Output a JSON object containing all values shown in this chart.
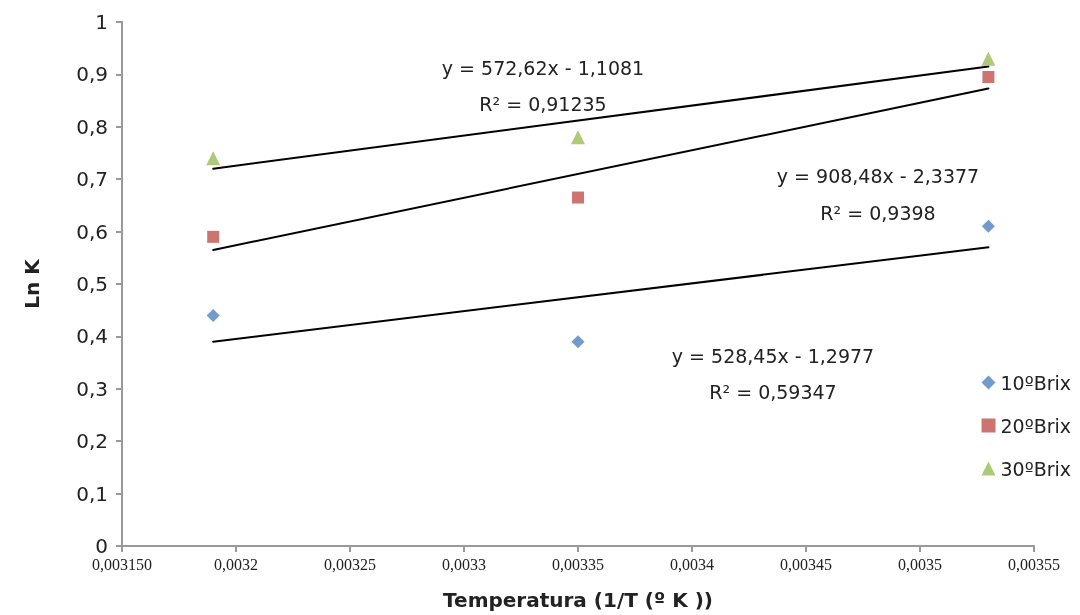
{
  "chart_data": {
    "type": "scatter",
    "xlabel": "Temperatura (1/T (º K ))",
    "ylabel": "Ln K",
    "xlim": [
      0.00315,
      0.00355
    ],
    "xticks": [
      {
        "value": 0.00315,
        "label": "0,003150"
      },
      {
        "value": 0.0032,
        "label": "0,0032"
      },
      {
        "value": 0.00325,
        "label": "0,00325"
      },
      {
        "value": 0.0033,
        "label": "0,0033"
      },
      {
        "value": 0.00335,
        "label": "0,00335"
      },
      {
        "value": 0.0034,
        "label": "0,0034"
      },
      {
        "value": 0.00345,
        "label": "0,00345"
      },
      {
        "value": 0.0035,
        "label": "0,0035"
      },
      {
        "value": 0.00355,
        "label": "0,00355"
      }
    ],
    "ylim": [
      0,
      1
    ],
    "yticks": [
      {
        "value": 0,
        "label": "0"
      },
      {
        "value": 0.1,
        "label": "0,1"
      },
      {
        "value": 0.2,
        "label": "0,2"
      },
      {
        "value": 0.3,
        "label": "0,3"
      },
      {
        "value": 0.4,
        "label": "0,4"
      },
      {
        "value": 0.5,
        "label": "0,5"
      },
      {
        "value": 0.6,
        "label": "0,6"
      },
      {
        "value": 0.7,
        "label": "0,7"
      },
      {
        "value": 0.8,
        "label": "0,8"
      },
      {
        "value": 0.9,
        "label": "0,9"
      },
      {
        "value": 1,
        "label": "1"
      }
    ],
    "series": [
      {
        "name": "10ºBrix",
        "color": "#4f81bd",
        "marker": "diamond",
        "x": [
          0.00319,
          0.00335,
          0.00353
        ],
        "values": [
          0.44,
          0.39,
          0.61
        ]
      },
      {
        "name": "20ºBrix",
        "color": "#c0504d",
        "marker": "square",
        "x": [
          0.00319,
          0.00335,
          0.00353
        ],
        "values": [
          0.59,
          0.665,
          0.895
        ]
      },
      {
        "name": "30ºBrix",
        "color": "#9bbb59",
        "marker": "triangle",
        "x": [
          0.00319,
          0.00335,
          0.00353
        ],
        "values": [
          0.74,
          0.78,
          0.93
        ]
      },
      {
        "type": "line",
        "color": "#000000",
        "marker": "none",
        "x": [
          0.00319,
          0.00353
        ],
        "values": [
          0.39,
          0.57
        ]
      },
      {
        "type": "line",
        "color": "#000000",
        "marker": "none",
        "x": [
          0.00319,
          0.00353
        ],
        "values": [
          0.565,
          0.873
        ]
      },
      {
        "type": "line",
        "color": "#000000",
        "marker": "none",
        "x": [
          0.00319,
          0.00353
        ],
        "values": [
          0.72,
          0.915
        ]
      }
    ],
    "annotations": [
      "y = 572,62x - 1,1081",
      "R² = 0,91235",
      "y = 908,48x - 2,3377",
      "R² = 0,9398",
      "y = 528,45x - 1,2977",
      "R² = 0,59347"
    ],
    "grid": false,
    "legend": "right"
  }
}
